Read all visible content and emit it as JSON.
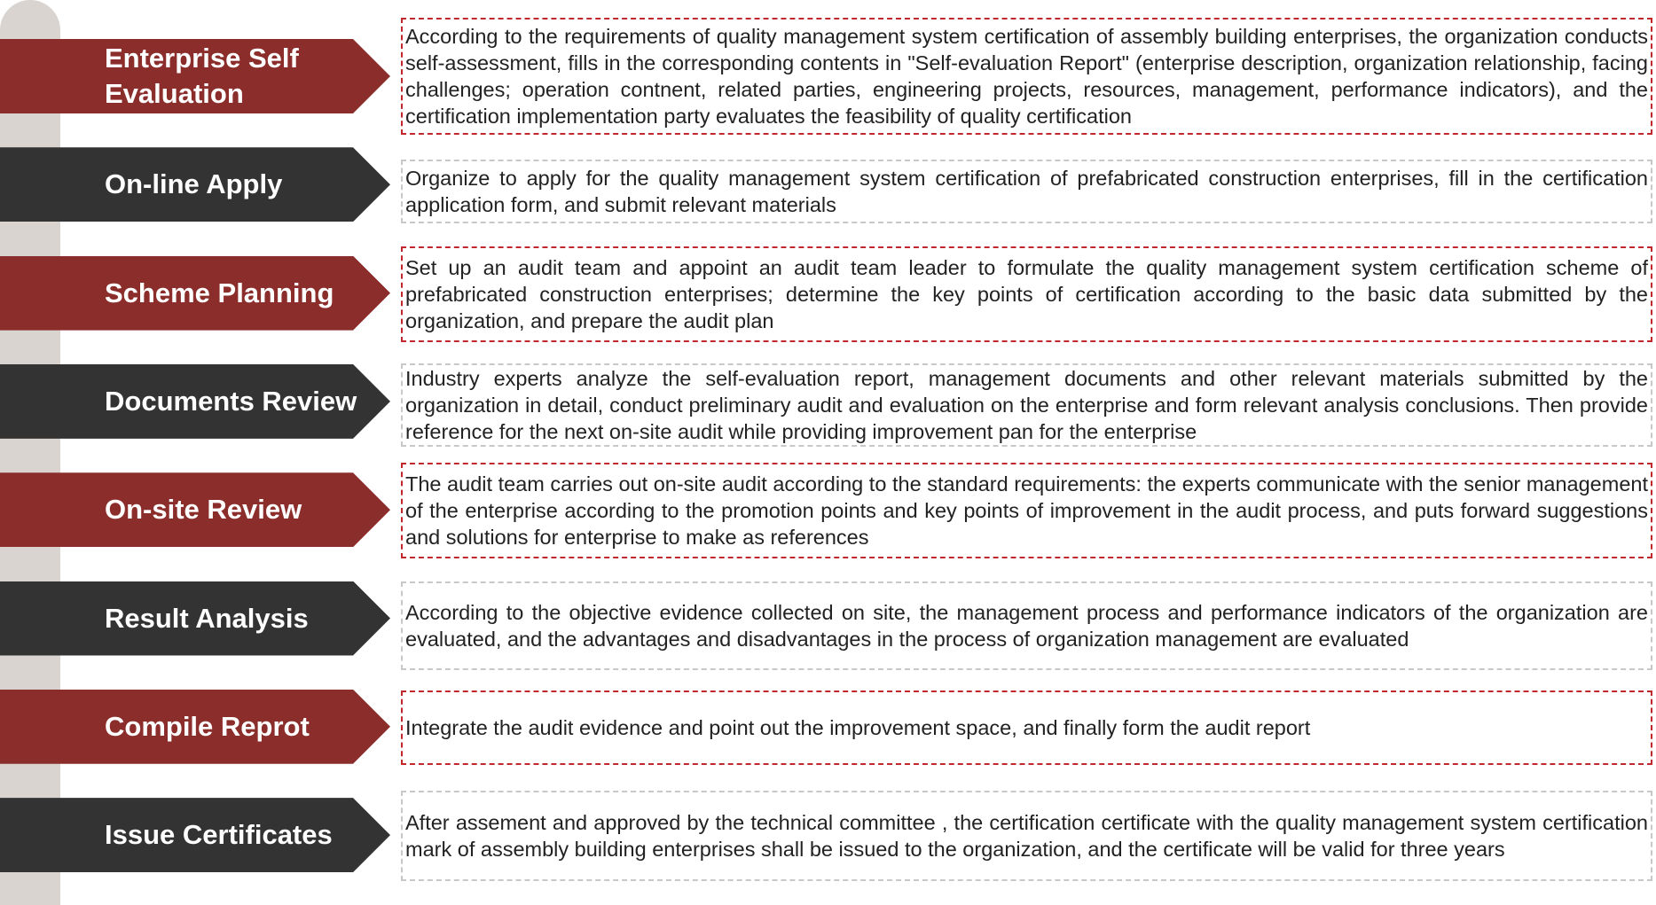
{
  "steps": [
    {
      "label": "Enterprise Self Evaluation",
      "description": "According to the requirements of quality management system certification of assembly building enterprises, the organization conducts self-assessment, fills in the corresponding contents in \"Self-evaluation Report\" (enterprise description, organization relationship, facing challenges; operation contnent, related parties, engineering projects, resources, management, performance indicators), and the certification implementation party evaluates the feasibility of quality certification"
    },
    {
      "label": "On-line Apply",
      "description": "Organize to apply for the quality management system certification of prefabricated construction enterprises, fill in the certification application form, and submit relevant materials"
    },
    {
      "label": "Scheme Planning",
      "description": "Set up an audit team and appoint an audit team leader to formulate the quality management system certification scheme of prefabricated construction enterprises; determine the key points of certification according to the basic data submitted by the organization, and prepare the audit plan"
    },
    {
      "label": "Documents Review",
      "description": "Industry experts analyze the self-evaluation report, management documents and other relevant materials submitted by the organization in detail, conduct preliminary audit and evaluation on the enterprise and form relevant analysis conclusions. Then provide reference for the next on-site audit while providing improvement pan for the enterprise"
    },
    {
      "label": "On-site Review",
      "description": "The audit team carries out on-site audit according to the standard requirements: the experts communicate with the senior management of the enterprise according to the promotion points and key points of improvement in the audit process, and puts forward suggestions and solutions for  enterprise to make as references"
    },
    {
      "label": "Result Analysis",
      "description": "According to the objective evidence collected on site, the management process and performance indicators of the organization are evaluated, and the advantages and disadvantages in the process of organization management are evaluated"
    },
    {
      "label": "Compile Reprot",
      "description": "Integrate the audit evidence and point out the improvement space, and finally form the audit report"
    },
    {
      "label": "Issue Certificates",
      "description": "After assement and approved by the technical committee , the certification certificate with the quality management system certification mark of assembly building enterprises shall be issued to the organization, and the certificate will be valid for three years"
    }
  ]
}
